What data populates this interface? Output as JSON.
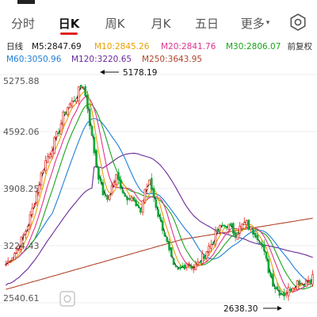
{
  "tabs": [
    {
      "label": "分时",
      "active": false
    },
    {
      "label": "日K",
      "active": true
    },
    {
      "label": "周K",
      "active": false
    },
    {
      "label": "月K",
      "active": false
    },
    {
      "label": "五日",
      "active": false
    },
    {
      "label": "更多",
      "active": false
    }
  ],
  "settings_icon": "gear-icon",
  "legend": {
    "period": "日线",
    "ma5": "M5:2847.69",
    "ma10": "M10:2845.26",
    "ma20": "M20:2841.76",
    "ma30": "M30:2806.07",
    "ma60": "M60:3050.96",
    "ma120": "M120:3220.65",
    "ma250": "M250:3643.95",
    "adjust": "前复权"
  },
  "colors": {
    "ma5": "#111111",
    "ma10": "#e8a100",
    "ma20": "#e0338f",
    "ma30": "#1aa51a",
    "ma60": "#1e7fd8",
    "ma120": "#6a2a9a",
    "ma250": "#b2452a",
    "up": "#e2231a",
    "down": "#11a83a",
    "accent": "#e2231a"
  },
  "chart_data": {
    "type": "candlestick",
    "y_axis_labels": [
      "5275.88",
      "4592.06",
      "3908.25",
      "3224.43",
      "2540.61"
    ],
    "ylim": [
      2540.61,
      5275.88
    ],
    "annotations": {
      "high": "5178.19",
      "low": "2638.30"
    },
    "grid": true,
    "price_path": [
      3000,
      3080,
      3150,
      3260,
      3380,
      3550,
      3760,
      4000,
      4200,
      4330,
      4450,
      4600,
      4780,
      4900,
      4950,
      5050,
      5178,
      4900,
      4500,
      4150,
      3900,
      3750,
      3920,
      4050,
      3950,
      3800,
      3850,
      3700,
      3620,
      3900,
      3980,
      3780,
      3550,
      3400,
      3150,
      2950,
      2920,
      2980,
      3040,
      2960,
      3000,
      3080,
      3180,
      3260,
      3380,
      3450,
      3480,
      3420,
      3370,
      3450,
      3500,
      3420,
      3380,
      3300,
      3100,
      2900,
      2740,
      2680,
      2650,
      2700,
      2760,
      2800,
      2780,
      2820,
      2850
    ]
  }
}
